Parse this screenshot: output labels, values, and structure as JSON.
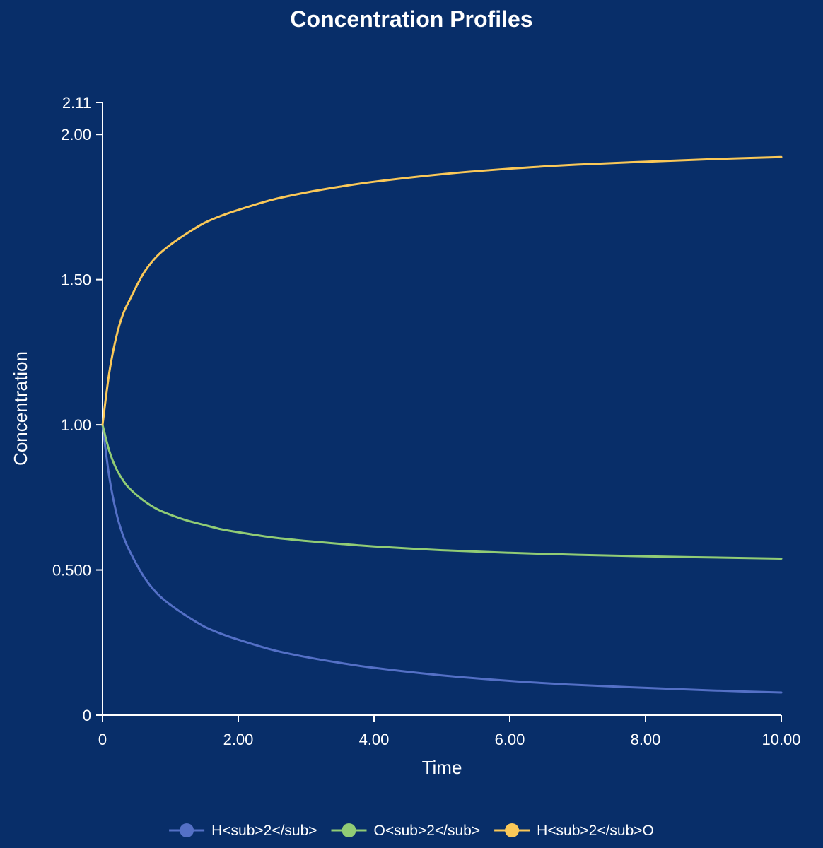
{
  "chart_data": {
    "type": "line",
    "title": "Concentration Profiles",
    "xlabel": "Time",
    "ylabel": "Concentration",
    "xlim": [
      0,
      10
    ],
    "ylim": [
      0,
      2.11
    ],
    "x_ticks": [
      {
        "value": 0,
        "label": "0"
      },
      {
        "value": 2,
        "label": "2.00"
      },
      {
        "value": 4,
        "label": "4.00"
      },
      {
        "value": 6,
        "label": "6.00"
      },
      {
        "value": 8,
        "label": "8.00"
      },
      {
        "value": 10,
        "label": "10.00"
      }
    ],
    "y_ticks": [
      {
        "value": 0,
        "label": "0"
      },
      {
        "value": 0.5,
        "label": "0.500"
      },
      {
        "value": 1.0,
        "label": "1.00"
      },
      {
        "value": 1.5,
        "label": "1.50"
      },
      {
        "value": 2.0,
        "label": "2.00"
      },
      {
        "value": 2.11,
        "label": "2.11"
      }
    ],
    "grid": false,
    "legend_position": "bottom",
    "x": [
      0,
      0.1,
      0.2,
      0.3,
      0.4,
      0.6,
      0.8,
      1.0,
      1.25,
      1.5,
      1.75,
      2.0,
      2.5,
      3.0,
      3.5,
      4.0,
      5.0,
      6.0,
      7.0,
      8.0,
      9.0,
      10.0
    ],
    "series": [
      {
        "name": "H<sub>2</sub>",
        "color": "#5470c6",
        "values": [
          1.0,
          0.82,
          0.7,
          0.62,
          0.565,
          0.48,
          0.42,
          0.38,
          0.34,
          0.305,
          0.28,
          0.26,
          0.225,
          0.2,
          0.18,
          0.163,
          0.137,
          0.118,
          0.104,
          0.094,
          0.085,
          0.078
        ]
      },
      {
        "name": "O<sub>2</sub>",
        "color": "#91cc75",
        "values": [
          1.0,
          0.91,
          0.85,
          0.81,
          0.78,
          0.74,
          0.71,
          0.69,
          0.67,
          0.655,
          0.64,
          0.63,
          0.612,
          0.6,
          0.59,
          0.581,
          0.568,
          0.559,
          0.552,
          0.547,
          0.543,
          0.539
        ]
      },
      {
        "name": "H<sub>2</sub>O",
        "color": "#fac858",
        "values": [
          1.0,
          1.18,
          1.3,
          1.38,
          1.43,
          1.52,
          1.58,
          1.62,
          1.66,
          1.695,
          1.72,
          1.74,
          1.775,
          1.8,
          1.82,
          1.837,
          1.863,
          1.882,
          1.896,
          1.906,
          1.915,
          1.922
        ]
      }
    ]
  }
}
